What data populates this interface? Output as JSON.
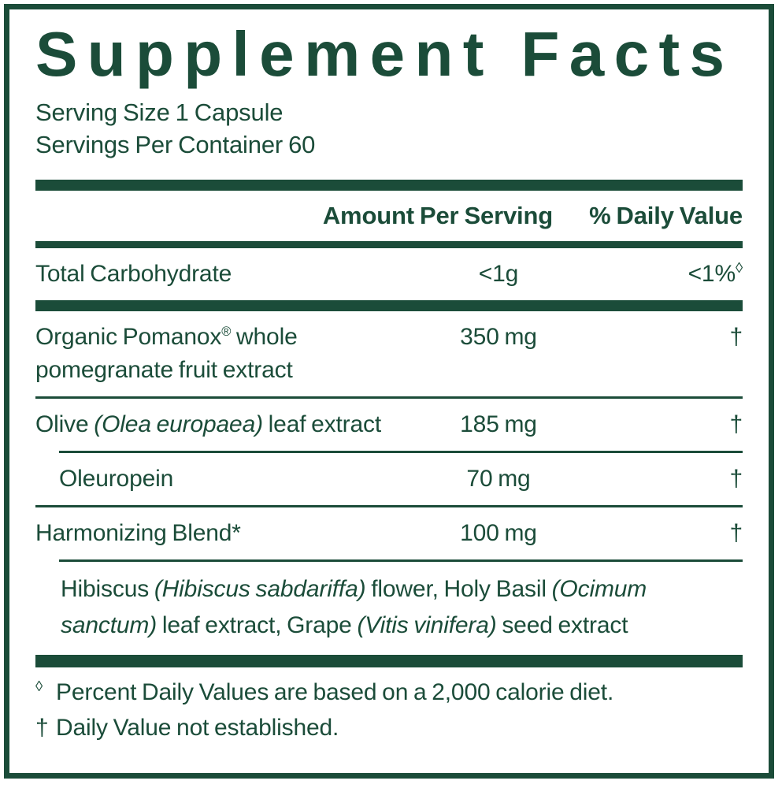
{
  "label": {
    "title": "Supplement Facts",
    "serving_size": "Serving Size 1 Capsule",
    "servings_per_container": "Servings Per Container 60",
    "header": {
      "amount": "Amount Per Serving",
      "daily_value": "% Daily Value"
    },
    "colors": {
      "green": "#1b4c39",
      "background": "#ffffff"
    }
  },
  "rows": [
    {
      "name": "Total Carbohydrate",
      "amount": "<1g",
      "daily_value": "<1%",
      "daily_value_symbol": "◊"
    },
    {
      "name_prefix": "Organic Pomanox",
      "name_reg": "®",
      "name_suffix": " whole pomegranate fruit extract",
      "amount": "350 mg",
      "daily_value": "†"
    },
    {
      "name_prefix": "Olive ",
      "name_italic": "(Olea europaea)",
      "name_suffix": " leaf extract",
      "amount": "185 mg",
      "daily_value": "†"
    },
    {
      "name": "Oleuropein",
      "amount": "70 mg",
      "daily_value": "†"
    },
    {
      "name": "Harmonizing Blend*",
      "amount": "100 mg",
      "daily_value": "†"
    }
  ],
  "blend_description": {
    "parts": [
      {
        "text": "Hibiscus "
      },
      {
        "text": "(Hibiscus sabdariffa)"
      },
      {
        "text": " flower, Holy Basil "
      },
      {
        "text": "(Ocimum sanctum)"
      },
      {
        "text": " leaf extract, Grape "
      },
      {
        "text": "(Vitis vinifera)"
      },
      {
        "text": " seed extract"
      }
    ]
  },
  "footnotes": [
    {
      "symbol": "◊",
      "text": "Percent Daily Values are based on a 2,000 calorie diet."
    },
    {
      "symbol": "†",
      "text": "Daily Value not established."
    }
  ]
}
